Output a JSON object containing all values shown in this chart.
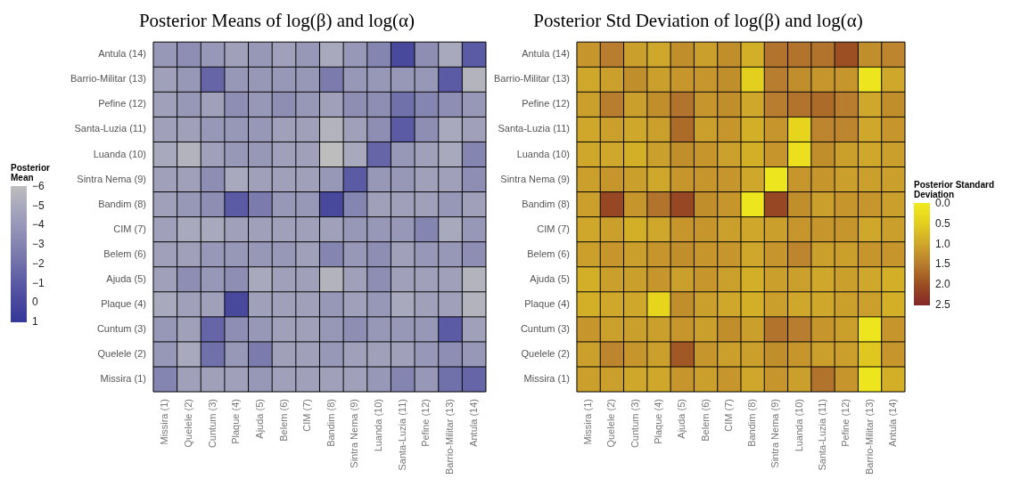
{
  "chart_data": [
    {
      "type": "heatmap",
      "title": "Posterior Means of log(β) and log(α)",
      "clabel": "Posterior Mean",
      "categories": [
        "Missira (1)",
        "Quelele (2)",
        "Cuntum (3)",
        "Plaque (4)",
        "Ajuda (5)",
        "Belem (6)",
        "CIM (7)",
        "Bandim (8)",
        "Sintra Nema (9)",
        "Luanda (10)",
        "Santa-Luzia (11)",
        "Pefine (12)",
        "Barrio-Militar (13)",
        "Antula (14)"
      ],
      "y_categories": [
        "Antula (14)",
        "Barrio-Militar (13)",
        "Pefine (12)",
        "Santa-Luzia (11)",
        "Luanda (10)",
        "Sintra Nema (9)",
        "Bandim (8)",
        "CIM (7)",
        "Belem (6)",
        "Ajuda (5)",
        "Plaque (4)",
        "Cuntum (3)",
        "Quelele (2)",
        "Missira (1)"
      ],
      "cells": [
        [
          -4,
          -3.5,
          -4,
          -4.5,
          -4,
          -4.5,
          -4,
          -5,
          -4,
          -3,
          0,
          -3.5,
          -5,
          -1
        ],
        [
          -4.5,
          -4,
          -1.5,
          -4,
          -4,
          -4,
          -4,
          -2.5,
          -4,
          -4,
          -4,
          -4,
          -1,
          -5.5
        ],
        [
          -4.5,
          -4,
          -4.5,
          -3.5,
          -4,
          -3.5,
          -4,
          -4.5,
          -3.5,
          -3.5,
          -2,
          -3,
          -3.5,
          -4
        ],
        [
          -4.5,
          -4.5,
          -4,
          -4,
          -4,
          -4.5,
          -4.5,
          -5.5,
          -4.5,
          -3.5,
          -1,
          -3.5,
          -5,
          -4.5
        ],
        [
          -5,
          -5.5,
          -4.5,
          -4,
          -4,
          -4.5,
          -4.5,
          -6,
          -5,
          -1.5,
          -4,
          -4.5,
          -5,
          -3
        ],
        [
          -4.5,
          -4.5,
          -3.5,
          -5,
          -4.5,
          -4.5,
          -4.5,
          -4,
          -1,
          -4,
          -4,
          -4.5,
          -4.5,
          -3.5
        ],
        [
          -4.5,
          -4,
          -3.5,
          -1,
          -2.5,
          -4,
          -4,
          0,
          -3,
          -4.5,
          -4.5,
          -4.5,
          -4,
          -4.5
        ],
        [
          -4.5,
          -5,
          -5,
          -4.5,
          -4.5,
          -4.5,
          -4.5,
          -4.5,
          -4,
          -4,
          -4,
          -3,
          -5,
          -4
        ],
        [
          -4.5,
          -4.5,
          -4,
          -4,
          -4,
          -4,
          -4.5,
          -3,
          -4,
          -3.5,
          -4.5,
          -4,
          -4,
          -3.5
        ],
        [
          -4.5,
          -3.5,
          -4,
          -3.5,
          -5,
          -4.5,
          -4.5,
          -5.5,
          -4.5,
          -3.5,
          -4.5,
          -4.5,
          -4.5,
          -5.5
        ],
        [
          -5,
          -4.5,
          -4.5,
          0,
          -4.5,
          -4.5,
          -4.5,
          -4,
          -4.5,
          -4,
          -5,
          -4.5,
          -4.5,
          -5.5
        ],
        [
          -4,
          -4.5,
          -1.5,
          -3.5,
          -4,
          -4.5,
          -4.5,
          -4,
          -3.5,
          -4,
          -4,
          -4,
          -1,
          -4.5
        ],
        [
          -4,
          -5,
          -2,
          -4,
          -2.5,
          -4.5,
          -4.5,
          -4,
          -4.5,
          -4.5,
          -4.5,
          -4,
          -3.5,
          -4
        ],
        [
          -3,
          -4.5,
          -4.5,
          -4.5,
          -4,
          -4.5,
          -4.5,
          -4.5,
          -4.5,
          -4,
          -3,
          -4,
          -2,
          -1.5
        ]
      ],
      "clim": [
        -6,
        1
      ],
      "cticks": [
        -6,
        -5,
        -4,
        -3,
        -2,
        -1,
        0,
        1
      ],
      "colors": [
        "#bdbdbd",
        "#a9a9bd",
        "#9797b8",
        "#8585b2",
        "#7070aa",
        "#5a5aa5",
        "#48489d",
        "#343897"
      ]
    },
    {
      "type": "heatmap",
      "title": "Posterior Std Deviation of log(β) and log(α)",
      "clabel": "Posterior Standard Deviation",
      "categories": [
        "Missira (1)",
        "Quelele (2)",
        "Cuntum (3)",
        "Plaque (4)",
        "Ajuda (5)",
        "Belem (6)",
        "CIM (7)",
        "Bandim (8)",
        "Sintra Nema (9)",
        "Luanda (10)",
        "Santa-Luzia (11)",
        "Pefine (12)",
        "Barrio-Militar (13)",
        "Antula (14)"
      ],
      "y_categories": [
        "Antula (14)",
        "Barrio-Militar (13)",
        "Pefine (12)",
        "Santa-Luzia (11)",
        "Luanda (10)",
        "Sintra Nema (9)",
        "Bandim (8)",
        "CIM (7)",
        "Belem (6)",
        "Ajuda (5)",
        "Plaque (4)",
        "Cuntum (3)",
        "Quelele (2)",
        "Missira (1)"
      ],
      "cells": [
        [
          1.2,
          1.5,
          1.1,
          1.0,
          1.3,
          1.1,
          1.3,
          0.9,
          1.6,
          1.6,
          1.6,
          2.0,
          1.3,
          1.4
        ],
        [
          1.0,
          1.1,
          1.3,
          1.1,
          1.2,
          1.2,
          1.3,
          0.5,
          1.5,
          1.3,
          1.2,
          1.2,
          0.1,
          1.0
        ],
        [
          1.1,
          1.5,
          1.1,
          1.3,
          1.6,
          1.2,
          1.3,
          1.0,
          1.5,
          1.6,
          1.7,
          1.5,
          1.0,
          1.3
        ],
        [
          1.0,
          1.1,
          1.0,
          1.1,
          1.7,
          1.1,
          1.2,
          0.9,
          1.2,
          0.4,
          1.4,
          1.4,
          1.0,
          1.2
        ],
        [
          1.0,
          1.0,
          0.9,
          1.1,
          1.3,
          1.2,
          1.1,
          0.9,
          1.2,
          0.2,
          1.3,
          1.1,
          1.0,
          1.1
        ],
        [
          1.1,
          1.2,
          1.1,
          1.0,
          1.2,
          1.2,
          1.2,
          1.0,
          0.1,
          1.2,
          1.2,
          1.1,
          1.1,
          1.1
        ],
        [
          1.1,
          2.1,
          1.2,
          1.6,
          2.1,
          1.3,
          1.2,
          0.1,
          2.1,
          1.3,
          1.1,
          1.2,
          1.2,
          1.1
        ],
        [
          1.0,
          1.1,
          0.9,
          1.0,
          1.2,
          1.2,
          1.1,
          1.0,
          1.1,
          1.2,
          1.2,
          1.2,
          1.0,
          1.1
        ],
        [
          1.1,
          1.2,
          1.1,
          1.2,
          1.3,
          1.2,
          1.2,
          1.0,
          1.2,
          1.4,
          1.1,
          1.1,
          1.2,
          1.2
        ],
        [
          0.9,
          1.1,
          1.1,
          1.2,
          1.1,
          1.2,
          1.1,
          0.9,
          1.1,
          1.1,
          1.0,
          1.1,
          1.0,
          0.9
        ],
        [
          0.9,
          1.0,
          1.0,
          0.4,
          1.3,
          1.1,
          1.0,
          0.9,
          1.1,
          1.0,
          1.0,
          1.1,
          1.1,
          0.9
        ],
        [
          1.2,
          1.1,
          1.1,
          1.1,
          1.2,
          1.1,
          1.3,
          1.1,
          1.6,
          1.5,
          1.2,
          1.1,
          0.1,
          1.2
        ],
        [
          1.1,
          1.4,
          1.2,
          1.1,
          1.9,
          1.2,
          1.1,
          1.1,
          1.3,
          1.2,
          1.1,
          1.1,
          0.6,
          1.2
        ],
        [
          1.1,
          1.1,
          1.0,
          1.0,
          1.2,
          1.1,
          1.2,
          1.0,
          1.2,
          1.1,
          1.6,
          1.2,
          0.1,
          0.9
        ]
      ],
      "clim": [
        0,
        2.5
      ],
      "cticks": [
        {
          "value": 0,
          "label": "0.0"
        },
        0.5,
        {
          "value": 1,
          "label": "1.0"
        },
        1.5,
        {
          "value": 2,
          "label": "2.0"
        },
        2.5
      ],
      "colors": [
        "#f0ea1e",
        "#e3cf1d",
        "#cfa72a",
        "#b87d2e",
        "#9b4f22",
        "#872828"
      ]
    }
  ]
}
